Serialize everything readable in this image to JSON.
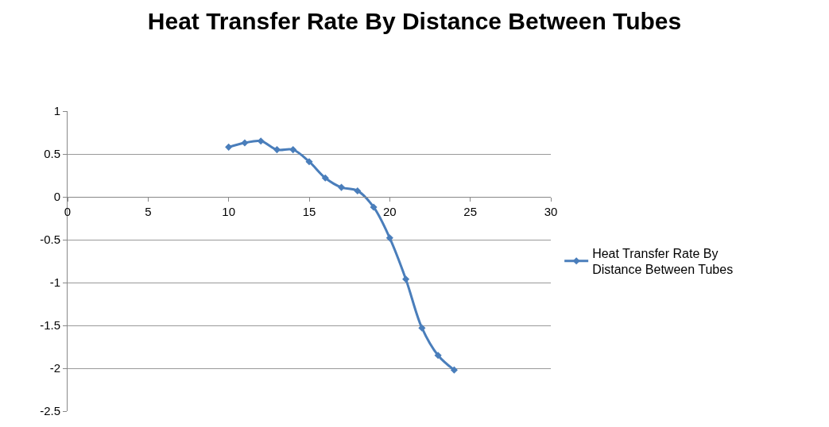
{
  "chart_data": {
    "type": "line",
    "title": "Heat Transfer Rate By Distance Between Tubes",
    "x": [
      10,
      11,
      12,
      13,
      14,
      15,
      16,
      17,
      18,
      19,
      20,
      21,
      22,
      23,
      24
    ],
    "series": [
      {
        "name": "Heat Transfer Rate By Distance Between Tubes",
        "color": "#4a7ebb",
        "values": [
          0.58,
          0.63,
          0.65,
          0.55,
          0.55,
          0.41,
          0.22,
          0.11,
          0.07,
          -0.12,
          -0.48,
          -0.96,
          -1.53,
          -1.85,
          -2.02
        ]
      }
    ],
    "xlim": [
      0,
      30
    ],
    "xticks": [
      0,
      5,
      10,
      15,
      20,
      25,
      30
    ],
    "ylim": [
      -2.5,
      1
    ],
    "yticks": [
      -2.5,
      -2,
      -1.5,
      -1,
      -0.5,
      0,
      0.5,
      1
    ],
    "grid": "y",
    "legend": "right",
    "marker": "diamond",
    "line_style": "solid"
  }
}
